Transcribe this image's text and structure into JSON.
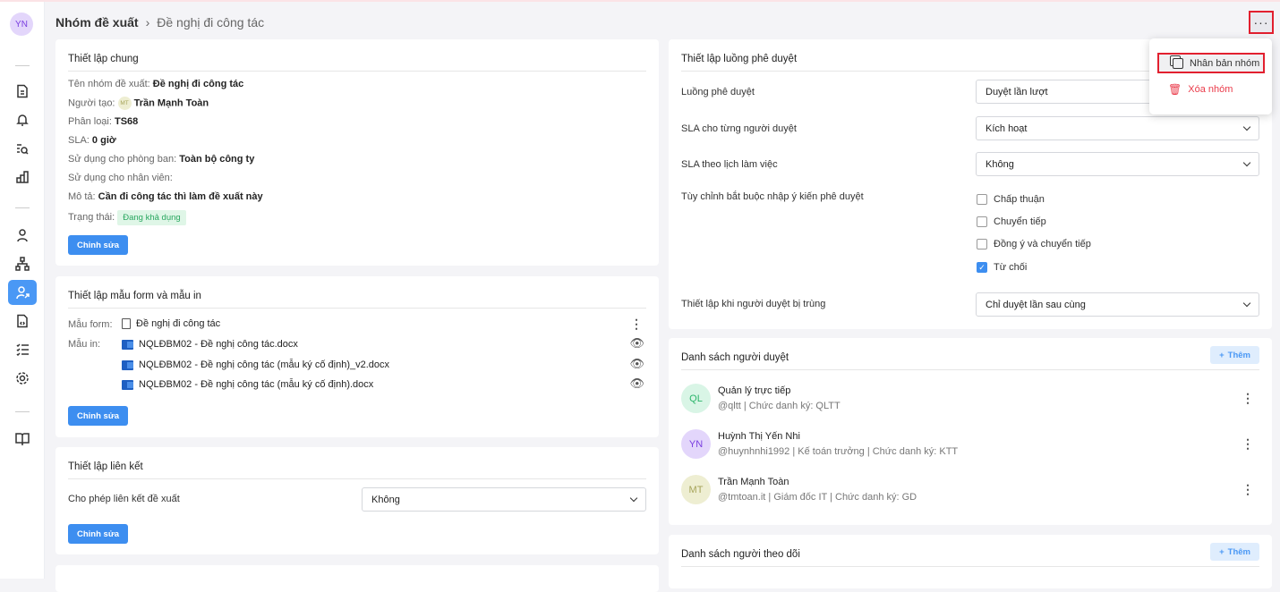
{
  "sidebar": {
    "avatar": "YN",
    "items": [
      "document",
      "notification",
      "search-list",
      "chart",
      "user",
      "org-chart",
      "user-share",
      "file-code",
      "checklist",
      "settings",
      "book"
    ],
    "active": "user-share"
  },
  "header": {
    "breadcrumb_root": "Nhóm đề xuất",
    "breadcrumb_current": "Đề nghị đi công tác",
    "more_label": "···"
  },
  "menu": {
    "duplicate": "Nhân bản nhóm",
    "delete": "Xóa nhóm"
  },
  "general": {
    "title": "Thiết lập chung",
    "name_label": "Tên nhóm đề xuất:",
    "name": "Đề nghị đi công tác",
    "creator_label": "Người tạo:",
    "creator_initials": "MT",
    "creator": "Trần Mạnh Toàn",
    "category_label": "Phân loại:",
    "category": "TS68",
    "sla_label": "SLA:",
    "sla": "0 giờ",
    "dept_label": "Sử dụng cho phòng ban:",
    "dept": "Toàn bộ công ty",
    "staff_label": "Sử dụng cho nhân viên:",
    "desc_label": "Mô tả:",
    "desc": "Cần đi công tác thì làm đề xuất này",
    "status_label": "Trạng thái:",
    "status": "Đang khả dụng",
    "edit": "Chỉnh sửa"
  },
  "forms": {
    "title": "Thiết lập mẫu form và mẫu in",
    "form_label": "Mẫu form:",
    "form": "Đề nghị đi công tác",
    "print_label": "Mẫu in:",
    "prints": [
      "NQLĐBM02 - Đề nghị công tác.docx",
      "NQLĐBM02 - Đề nghị công tác (mẫu ký cố định)_v2.docx",
      "NQLĐBM02 - Đề nghị công tác (mẫu ký cố định).docx"
    ],
    "edit": "Chỉnh sửa"
  },
  "link": {
    "title": "Thiết lập liên kết",
    "label": "Cho phép liên kết đề xuất",
    "value": "Không",
    "edit": "Chỉnh sửa"
  },
  "flow": {
    "title": "Thiết lập luồng phê duyệt",
    "flow_label": "Luồng phê duyệt",
    "flow_value": "Duyệt lần lượt",
    "sla_label": "SLA cho từng người duyệt",
    "sla_value": "Kích hoạt",
    "cal_label": "SLA theo lịch làm việc",
    "cal_value": "Không",
    "custom_label": "Tùy chỉnh bắt buộc nhập ý kiến phê duyệt",
    "options": [
      {
        "label": "Chấp thuận",
        "checked": false
      },
      {
        "label": "Chuyển tiếp",
        "checked": false
      },
      {
        "label": "Đồng ý và chuyển tiếp",
        "checked": false
      },
      {
        "label": "Từ chối",
        "checked": true
      }
    ],
    "dup_label": "Thiết lập khi người duyệt bị trùng",
    "dup_value": "Chỉ duyệt lần sau cùng"
  },
  "approvers": {
    "title": "Danh sách người duyệt",
    "add": "Thêm",
    "list": [
      {
        "initials": "QL",
        "name": "Quản lý trực tiếp",
        "sub": "@qltt | Chức danh ký: QLTT",
        "bg": "#d9f5e6",
        "fg": "#2bb56b"
      },
      {
        "initials": "YN",
        "name": "Huỳnh Thị Yến Nhi",
        "sub": "@huynhnhi1992 | Kế toán trưởng | Chức danh ký: KTT",
        "bg": "#e3d6fb",
        "fg": "#7a3ee0"
      },
      {
        "initials": "MT",
        "name": "Trần Mạnh Toàn",
        "sub": "@tmtoan.it | Giám đốc IT | Chức danh ký: GD",
        "bg": "#eeeed2",
        "fg": "#a6a45a"
      }
    ]
  },
  "followers": {
    "title": "Danh sách người theo dõi",
    "add": "Thêm"
  }
}
